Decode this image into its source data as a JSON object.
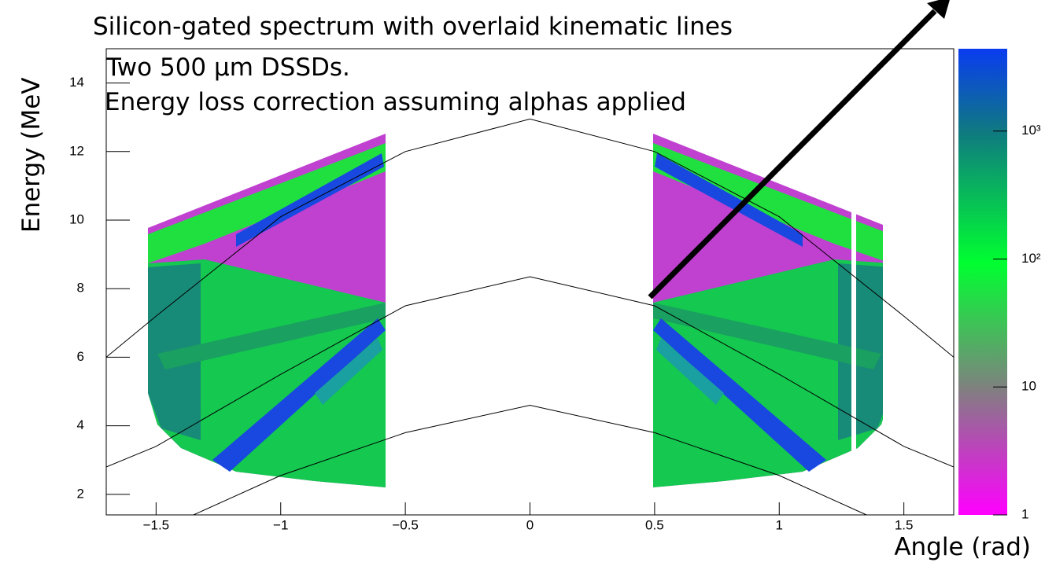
{
  "chart_data": {
    "type": "heatmap",
    "title": "Silicon-gated spectrum with overlaid kinematic lines",
    "annotations": [
      "Two 500 µm DSSDs.",
      "Energy loss correction assuming alphas applied"
    ],
    "xlabel": "Angle (rad)",
    "ylabel": "Energy (MeV",
    "xlim": [
      -1.7,
      1.7
    ],
    "ylim": [
      1.4,
      15
    ],
    "xticks": [
      {
        "value": -1.5,
        "label": "−1.5"
      },
      {
        "value": -1,
        "label": "−1"
      },
      {
        "value": -0.5,
        "label": "−0.5"
      },
      0,
      0.5,
      1,
      1.5
    ],
    "yticks": [
      2,
      4,
      6,
      8,
      10,
      12,
      14
    ],
    "zlim": [
      1,
      4400
    ],
    "zlog": true,
    "zticks": [
      1,
      10,
      {
        "value": 100,
        "label": "10²"
      },
      {
        "value": 1000,
        "label": "10³"
      }
    ],
    "series": [
      {
        "color": "#000000",
        "x": [
          -1.7,
          -1.5,
          -1,
          -0.5,
          0,
          0.5,
          1,
          1.5,
          1.7
        ],
        "values": [
          6.0,
          7.2,
          10.1,
          12.0,
          12.95,
          12.0,
          10.1,
          7.2,
          6.0
        ]
      },
      {
        "color": "#000000",
        "x": [
          -1.7,
          -1.5,
          -1,
          -0.5,
          0,
          0.5,
          1,
          1.5,
          1.7
        ],
        "values": [
          2.8,
          3.4,
          5.5,
          7.5,
          8.35,
          7.5,
          5.5,
          3.4,
          2.8
        ]
      },
      {
        "color": "#000000",
        "x": [
          -1.35,
          -1,
          -0.5,
          0,
          0.5,
          1,
          1.35
        ],
        "values": [
          1.4,
          2.55,
          3.8,
          4.6,
          3.8,
          2.55,
          1.4
        ]
      }
    ]
  }
}
